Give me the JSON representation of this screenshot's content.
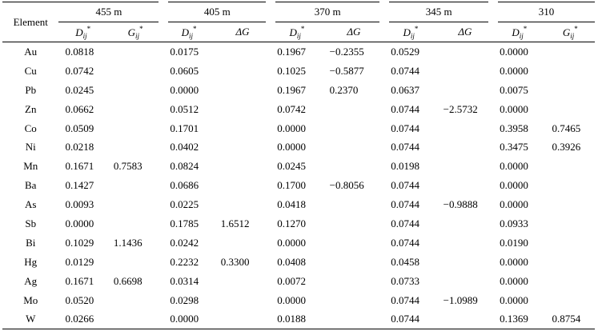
{
  "header": {
    "element_label": "Element",
    "groups": [
      "455 m",
      "405 m",
      "370 m",
      "345 m",
      "310"
    ],
    "subheaders": [
      {
        "sym": "D",
        "sub": "ij",
        "sup": "*"
      },
      {
        "sym": "G",
        "sub": "ij",
        "sup": "*"
      },
      {
        "sym": "D",
        "sub": "ij",
        "sup": "*"
      },
      {
        "sym": "ΔG",
        "sub": "",
        "sup": ""
      },
      {
        "sym": "D",
        "sub": "ij",
        "sup": "*"
      },
      {
        "sym": "ΔG",
        "sub": "",
        "sup": ""
      },
      {
        "sym": "D",
        "sub": "ij",
        "sup": "*"
      },
      {
        "sym": "ΔG",
        "sub": "",
        "sup": ""
      },
      {
        "sym": "D",
        "sub": "ij",
        "sup": "*"
      },
      {
        "sym": "G",
        "sub": "ij",
        "sup": "*"
      }
    ]
  },
  "rows": [
    {
      "el": "Au",
      "v": [
        "0.0818",
        "",
        "0.0175",
        "",
        "0.1967",
        "−0.2355",
        "0.0529",
        "",
        "0.0000",
        ""
      ]
    },
    {
      "el": "Cu",
      "v": [
        "0.0742",
        "",
        "0.0605",
        "",
        "0.1025",
        "−0.5877",
        "0.0744",
        "",
        "0.0000",
        ""
      ]
    },
    {
      "el": "Pb",
      "v": [
        "0.0245",
        "",
        "0.0000",
        "",
        "0.1967",
        "0.2370",
        "0.0637",
        "",
        "0.0075",
        ""
      ]
    },
    {
      "el": "Zn",
      "v": [
        "0.0662",
        "",
        "0.0512",
        "",
        "0.0742",
        "",
        "0.0744",
        "−2.5732",
        "0.0000",
        ""
      ]
    },
    {
      "el": "Co",
      "v": [
        "0.0509",
        "",
        "0.1701",
        "",
        "0.0000",
        "",
        "0.0744",
        "",
        "0.3958",
        "0.7465"
      ]
    },
    {
      "el": "Ni",
      "v": [
        "0.0218",
        "",
        "0.0402",
        "",
        "0.0000",
        "",
        "0.0744",
        "",
        "0.3475",
        "0.3926"
      ]
    },
    {
      "el": "Mn",
      "v": [
        "0.1671",
        "0.7583",
        "0.0824",
        "",
        "0.0245",
        "",
        "0.0198",
        "",
        "0.0000",
        ""
      ]
    },
    {
      "el": "Ba",
      "v": [
        "0.1427",
        "",
        "0.0686",
        "",
        "0.1700",
        "−0.8056",
        "0.0744",
        "",
        "0.0000",
        ""
      ]
    },
    {
      "el": "As",
      "v": [
        "0.0093",
        "",
        "0.0225",
        "",
        "0.0418",
        "",
        "0.0744",
        "−0.9888",
        "0.0000",
        ""
      ]
    },
    {
      "el": "Sb",
      "v": [
        "0.0000",
        "",
        "0.1785",
        "1.6512",
        "0.1270",
        "",
        "0.0744",
        "",
        "0.0933",
        ""
      ]
    },
    {
      "el": "Bi",
      "v": [
        "0.1029",
        "1.1436",
        "0.0242",
        "",
        "0.0000",
        "",
        "0.0744",
        "",
        "0.0190",
        ""
      ]
    },
    {
      "el": "Hg",
      "v": [
        "0.0129",
        "",
        "0.2232",
        "0.3300",
        "0.0408",
        "",
        "0.0458",
        "",
        "0.0000",
        ""
      ]
    },
    {
      "el": "Ag",
      "v": [
        "0.1671",
        "0.6698",
        "0.0314",
        "",
        "0.0072",
        "",
        "0.0733",
        "",
        "0.0000",
        ""
      ]
    },
    {
      "el": "Mo",
      "v": [
        "0.0520",
        "",
        "0.0298",
        "",
        "0.0000",
        "",
        "0.0744",
        "−1.0989",
        "0.0000",
        ""
      ]
    },
    {
      "el": "W",
      "v": [
        "0.0266",
        "",
        "0.0000",
        "",
        "0.0188",
        "",
        "0.0744",
        "",
        "0.1369",
        "0.8754"
      ]
    }
  ]
}
